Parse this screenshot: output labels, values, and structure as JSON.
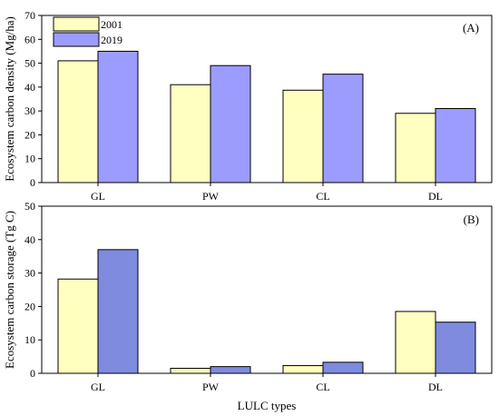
{
  "figure": {
    "xlabel": "LULC types"
  },
  "chart_data": [
    {
      "type": "bar",
      "panel_label": "(A)",
      "title": "",
      "xlabel": "",
      "ylabel": "Ecosystem carbon density (Mg/ha)",
      "categories": [
        "GL",
        "PW",
        "CL",
        "DL"
      ],
      "ylim": [
        0,
        70
      ],
      "yticks": [
        0,
        10,
        20,
        30,
        40,
        50,
        60,
        70
      ],
      "grid": false,
      "legend_position": "top-left",
      "series": [
        {
          "name": "2001",
          "color": "#FFFFC0",
          "values": [
            51,
            41,
            38.7,
            29
          ]
        },
        {
          "name": "2019",
          "color": "#9C9CFF",
          "values": [
            55,
            49,
            45.4,
            31
          ]
        }
      ]
    },
    {
      "type": "bar",
      "panel_label": "(B)",
      "title": "",
      "xlabel": "LULC types",
      "ylabel": "Ecosystem carbon storage (Tg C)",
      "categories": [
        "GL",
        "PW",
        "CL",
        "DL"
      ],
      "ylim": [
        0,
        50
      ],
      "yticks": [
        0,
        10,
        20,
        30,
        40,
        50
      ],
      "grid": false,
      "series": [
        {
          "name": "2001",
          "color": "#FFFFC0",
          "values": [
            28.2,
            1.5,
            2.3,
            18.5
          ]
        },
        {
          "name": "2019",
          "color": "#7E8BDF",
          "values": [
            37,
            2.0,
            3.3,
            15.3
          ]
        }
      ]
    }
  ]
}
